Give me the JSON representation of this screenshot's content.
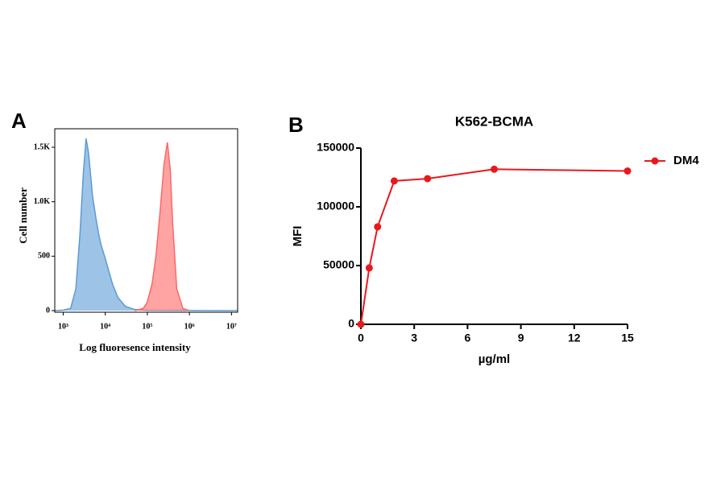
{
  "chart_data": [
    {
      "type": "area",
      "label": "A",
      "x_log": true,
      "xlabel": "Log fluoresence intensity",
      "ylabel": "Cell number",
      "xlim": [
        631,
        14000000
      ],
      "ylim": [
        0,
        1670
      ],
      "xticks": [
        {
          "value": 1000,
          "label": "10³"
        },
        {
          "value": 10000,
          "label": "10⁴"
        },
        {
          "value": 100000,
          "label": "10⁵"
        },
        {
          "value": 1000000,
          "label": "10⁶"
        },
        {
          "value": 10000000,
          "label": "10⁷"
        }
      ],
      "yticks": [
        0,
        500,
        {
          "value": 1000,
          "label": "1.0K"
        },
        {
          "value": 1500,
          "label": "1.5K"
        }
      ],
      "series": [
        {
          "color": "#5b9bd5",
          "x": [
            631,
            1000,
            1500,
            2000,
            2500,
            3000,
            3500,
            4000,
            5000,
            6000,
            7000,
            8000,
            10000,
            12000,
            15000,
            20000,
            30000,
            50000,
            100000,
            1000000,
            14000000
          ],
          "values": [
            0,
            5,
            20,
            200,
            700,
            1250,
            1580,
            1450,
            1050,
            850,
            700,
            600,
            480,
            370,
            240,
            120,
            40,
            10,
            3,
            2,
            0
          ]
        },
        {
          "color": "#ff6666",
          "x": [
            50000,
            80000,
            100000,
            130000,
            160000,
            200000,
            250000,
            300000,
            350000,
            400000,
            500000,
            700000,
            1000000
          ],
          "values": [
            0,
            20,
            80,
            250,
            500,
            900,
            1350,
            1545,
            1300,
            800,
            200,
            20,
            0
          ]
        }
      ]
    },
    {
      "type": "line",
      "label": "B",
      "title": "K562-BCMA",
      "xlabel": "µg/ml",
      "ylabel": "MFI",
      "xlim": [
        0,
        15
      ],
      "ylim": [
        0,
        150000
      ],
      "xticks": [
        0,
        3,
        6,
        9,
        12,
        15
      ],
      "yticks": [
        0,
        50000,
        100000,
        150000
      ],
      "x": [
        0,
        0.47,
        0.94,
        1.875,
        3.75,
        7.5,
        15
      ],
      "series": [
        {
          "name": "DM4",
          "color": "#e8191c",
          "values": [
            0,
            48000,
            83000,
            122000,
            124000,
            132000,
            130500
          ]
        }
      ]
    }
  ]
}
